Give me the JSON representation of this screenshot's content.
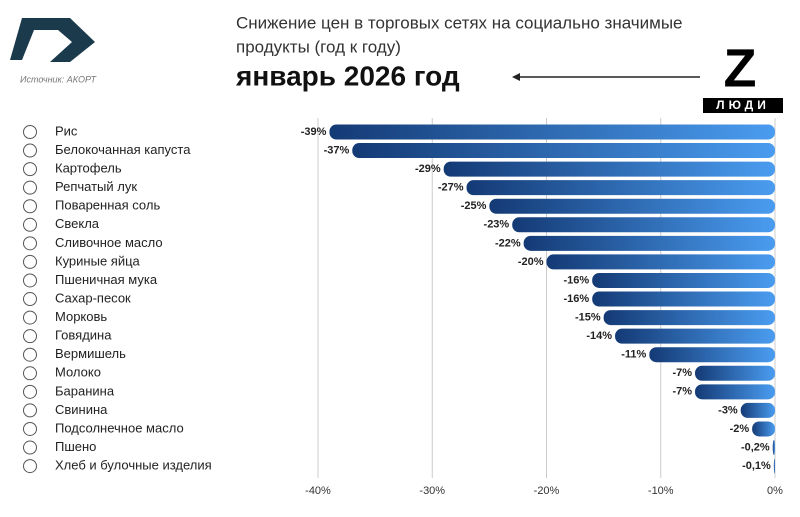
{
  "header": {
    "title_line_1": "Снижение цен в торговых сетях на социально значимые",
    "title_line_2": "продукты (год к году)",
    "subtitle": "январь 2026 год",
    "source": "Источник: АКОРТ",
    "logo_letter": "Z",
    "logo_text": "ЛЮДИ"
  },
  "chart_data": {
    "type": "hbar",
    "categories": [
      "Рис",
      "Белокочанная капуста",
      "Картофель",
      "Репчатый лук",
      "Поваренная соль",
      "Свекла",
      "Сливочное масло",
      "Куриные яйца",
      "Пшеничная мука",
      "Сахар-песок",
      "Морковь",
      "Говядина",
      "Вермишель",
      "Молоко",
      "Баранина",
      "Свинина",
      "Подсолнечное масло",
      "Пшено",
      "Хлеб и булочные изделия"
    ],
    "values": [
      -39,
      -37,
      -29,
      -27,
      -25,
      -23,
      -22,
      -20,
      -16,
      -16,
      -15,
      -14,
      -11,
      -7,
      -7,
      -3,
      -2,
      -0.2,
      -0.1
    ],
    "value_labels": [
      "-39%",
      "-37%",
      "-29%",
      "-27%",
      "-25%",
      "-23%",
      "-22%",
      "-20%",
      "-16%",
      "-16%",
      "-15%",
      "-14%",
      "-11%",
      "-7%",
      "-7%",
      "-3%",
      "-2%",
      "-0,2%",
      "-0,1%"
    ],
    "xlim": [
      -40,
      0
    ],
    "xticks": [
      {
        "value": -40,
        "label": "-40%"
      },
      {
        "value": -30,
        "label": "-30%"
      },
      {
        "value": -20,
        "label": "-20%"
      },
      {
        "value": -10,
        "label": "-10%"
      },
      {
        "value": 0,
        "label": "0%"
      }
    ],
    "grid": true,
    "color": [
      "#143a75",
      "#4a9cf0"
    ]
  }
}
